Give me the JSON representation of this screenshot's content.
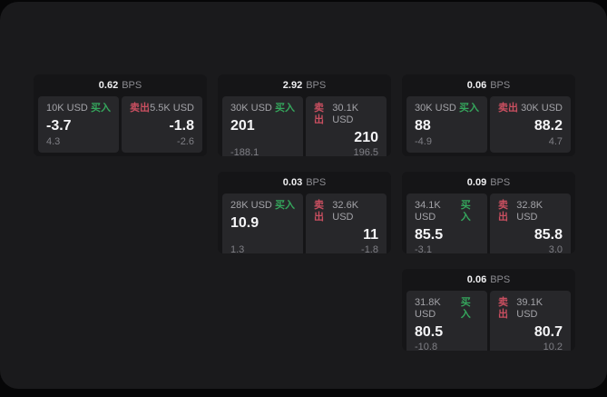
{
  "labels": {
    "bps_unit": "BPS",
    "buy": "买入",
    "sell": "卖出"
  },
  "colors": {
    "buy_green": "#35a55c",
    "sell_red": "#c94f60",
    "surface": "#1a1a1c",
    "card": "#151517",
    "panel": "#27272a"
  },
  "cards": [
    {
      "bps": "0.62",
      "buy": {
        "amount": "10K USD",
        "value": "-3.7",
        "delta": "4.3"
      },
      "sell": {
        "amount": "5.5K USD",
        "value": "-1.8",
        "delta": "-2.6"
      }
    },
    {
      "bps": "2.92",
      "buy": {
        "amount": "30K USD",
        "value": "201",
        "delta": "-188.1"
      },
      "sell": {
        "amount": "30.1K USD",
        "value": "210",
        "delta": "196.5"
      }
    },
    {
      "bps": "0.06",
      "buy": {
        "amount": "30K USD",
        "value": "88",
        "delta": "-4.9"
      },
      "sell": {
        "amount": "30K USD",
        "value": "88.2",
        "delta": "4.7"
      }
    },
    {
      "bps": "0.03",
      "buy": {
        "amount": "28K USD",
        "value": "10.9",
        "delta": "1.3"
      },
      "sell": {
        "amount": "32.6K USD",
        "value": "11",
        "delta": "-1.8"
      }
    },
    {
      "bps": "0.09",
      "buy": {
        "amount": "34.1K USD",
        "value": "85.5",
        "delta": "-3.1"
      },
      "sell": {
        "amount": "32.8K USD",
        "value": "85.8",
        "delta": "3.0"
      }
    },
    {
      "bps": "0.06",
      "buy": {
        "amount": "31.8K USD",
        "value": "80.5",
        "delta": "-10.8"
      },
      "sell": {
        "amount": "39.1K USD",
        "value": "80.7",
        "delta": "10.2"
      }
    }
  ]
}
